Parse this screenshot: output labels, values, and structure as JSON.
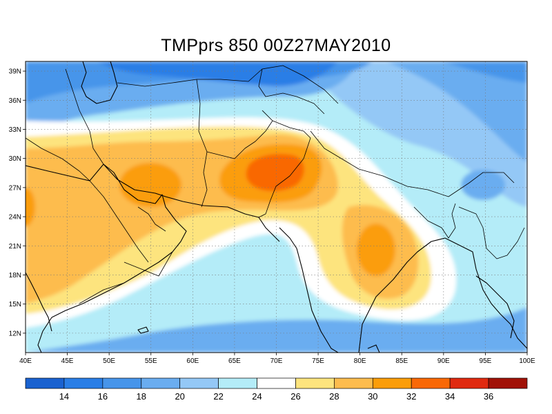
{
  "title": "TMPprs 850 00Z27MAY2010",
  "map": {
    "variable": "TMPprs",
    "level": "850",
    "time": "00Z27MAY2010",
    "extent": {
      "lon": [
        40,
        100
      ],
      "lat": [
        10,
        40
      ]
    },
    "lon_ticks": [
      "40E",
      "45E",
      "50E",
      "55E",
      "60E",
      "65E",
      "70E",
      "75E",
      "80E",
      "85E",
      "90E",
      "95E",
      "100E"
    ],
    "lat_ticks": [
      "12N",
      "15N",
      "18N",
      "21N",
      "24N",
      "27N",
      "30N",
      "33N",
      "36N",
      "39N"
    ],
    "gridlines": "dotted",
    "field_features": [
      {
        "type": "high",
        "value_range": [
          32,
          34
        ],
        "center": [
          70,
          28.8
        ]
      },
      {
        "type": "high",
        "value_range": [
          30,
          32
        ],
        "center": [
          81.5,
          20
        ]
      },
      {
        "type": "high",
        "value_range": [
          30,
          32
        ],
        "center": [
          55,
          27
        ]
      },
      {
        "type": "low",
        "value_range": [
          14,
          16
        ],
        "center": [
          74,
          39
        ]
      },
      {
        "type": "low",
        "value_range": [
          18,
          20
        ],
        "center": [
          94,
          27
        ]
      }
    ]
  },
  "colorbar": {
    "levels": [
      "14",
      "16",
      "18",
      "20",
      "22",
      "24",
      "26",
      "28",
      "30",
      "32",
      "34",
      "36"
    ],
    "colors": [
      "#1a62d0",
      "#2a7ee6",
      "#4795ea",
      "#6aadf0",
      "#94c8f6",
      "#b4ecf8",
      "#ffffff",
      "#fde47e",
      "#fdbc4e",
      "#fb9d0a",
      "#f96806",
      "#e02a10",
      "#a11208"
    ]
  }
}
